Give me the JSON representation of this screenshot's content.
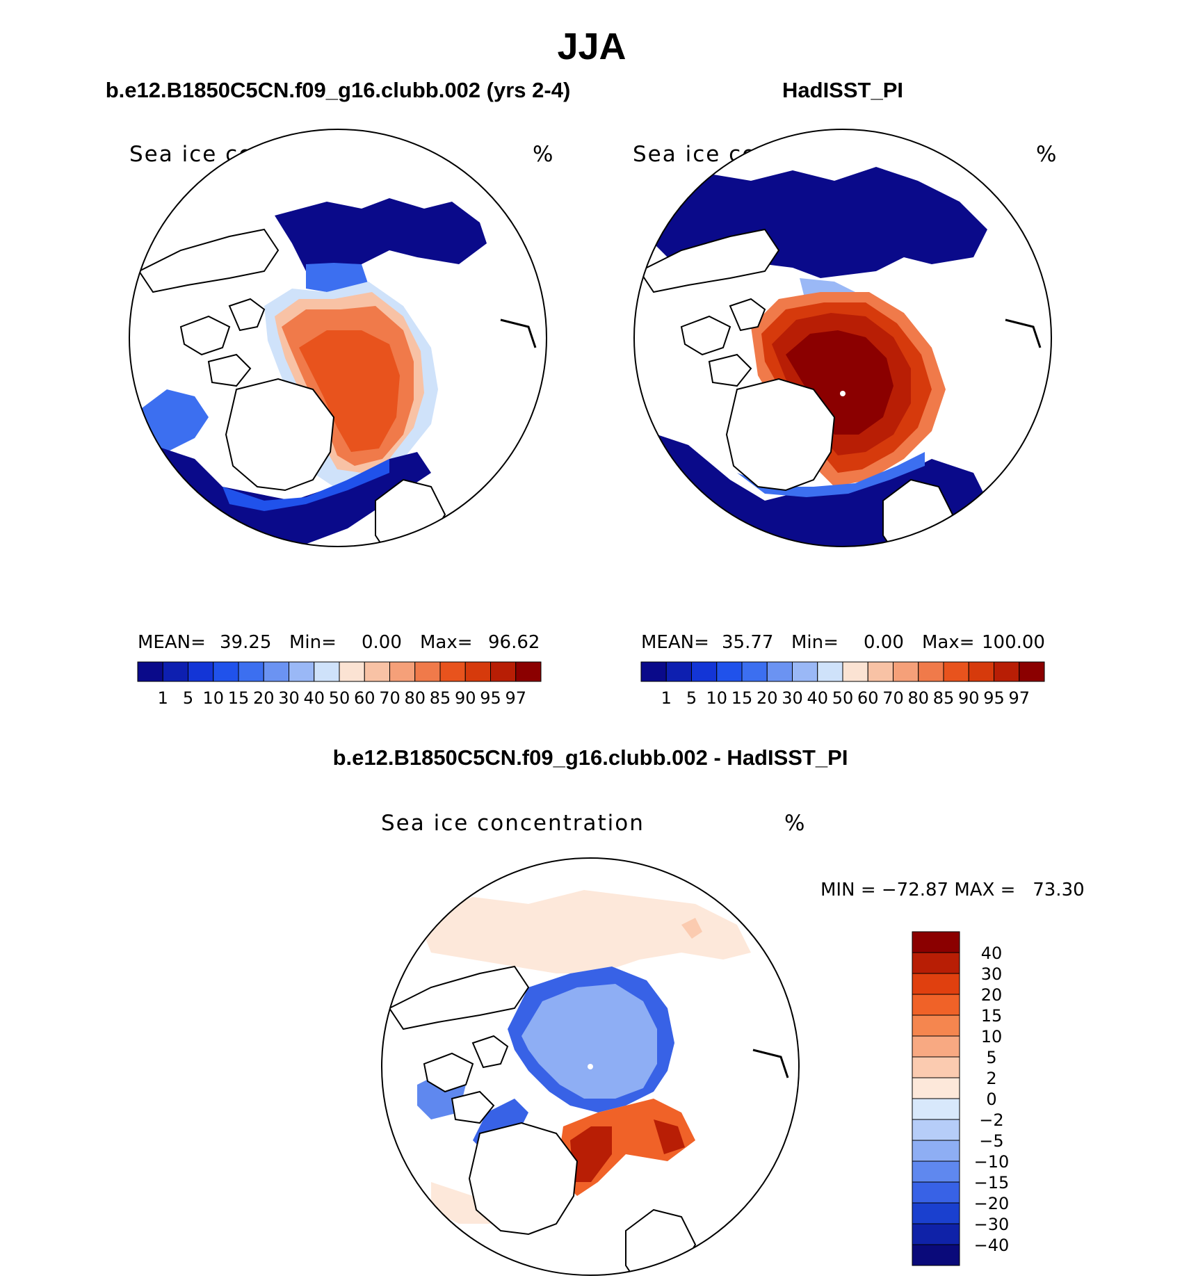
{
  "season_title": "JJA",
  "panel_model": {
    "case_title": "b.e12.B1850C5CN.f09_g16.clubb.002 (yrs 2-4)",
    "variable": "Sea ice concentration",
    "units": "%",
    "stats": {
      "mean_label": "MEAN=",
      "mean": "39.25",
      "min_label": "Min=",
      "min": "0.00",
      "max_label": "Max=",
      "max": "96.62"
    }
  },
  "panel_obs": {
    "case_title": "HadISST_PI",
    "variable": "Sea ice concentration",
    "units": "%",
    "stats": {
      "mean_label": "MEAN=",
      "mean": "35.77",
      "min_label": "Min=",
      "min": "0.00",
      "max_label": "Max=",
      "max": "100.00"
    }
  },
  "panel_diff": {
    "case_title": "b.e12.B1850C5CN.f09_g16.clubb.002 - HadISST_PI",
    "variable": "Sea ice concentration",
    "units": "%",
    "minmax_text": "MIN = −72.87 MAX =   73.30"
  },
  "colorbar_abs": {
    "labels": [
      "1",
      "5",
      "10",
      "15",
      "20",
      "30",
      "40",
      "50",
      "60",
      "70",
      "80",
      "85",
      "90",
      "95",
      "97"
    ],
    "colors": [
      "#0a0a8a",
      "#0d1fb0",
      "#1335d6",
      "#2052eb",
      "#3c6ff0",
      "#6b93f2",
      "#9ab8f6",
      "#cfe2fa",
      "#fbe3d3",
      "#f8c2a5",
      "#f5a079",
      "#f07a4a",
      "#e8531d",
      "#d63a0c",
      "#b81e05",
      "#8b0000"
    ]
  },
  "colorbar_diff": {
    "labels": [
      "40",
      "30",
      "20",
      "15",
      "10",
      "5",
      "2",
      "0",
      "−2",
      "−5",
      "−10",
      "−15",
      "−20",
      "−30",
      "−40"
    ],
    "colors": [
      "#8b0000",
      "#b81e05",
      "#e0400f",
      "#f06228",
      "#f5864f",
      "#f8a982",
      "#fbcbb0",
      "#fde8da",
      "#d8e8fb",
      "#b6cdf8",
      "#8eaef4",
      "#5f88ef",
      "#3862e6",
      "#1a40cf",
      "#0f22a8",
      "#0a0a7a"
    ]
  }
}
